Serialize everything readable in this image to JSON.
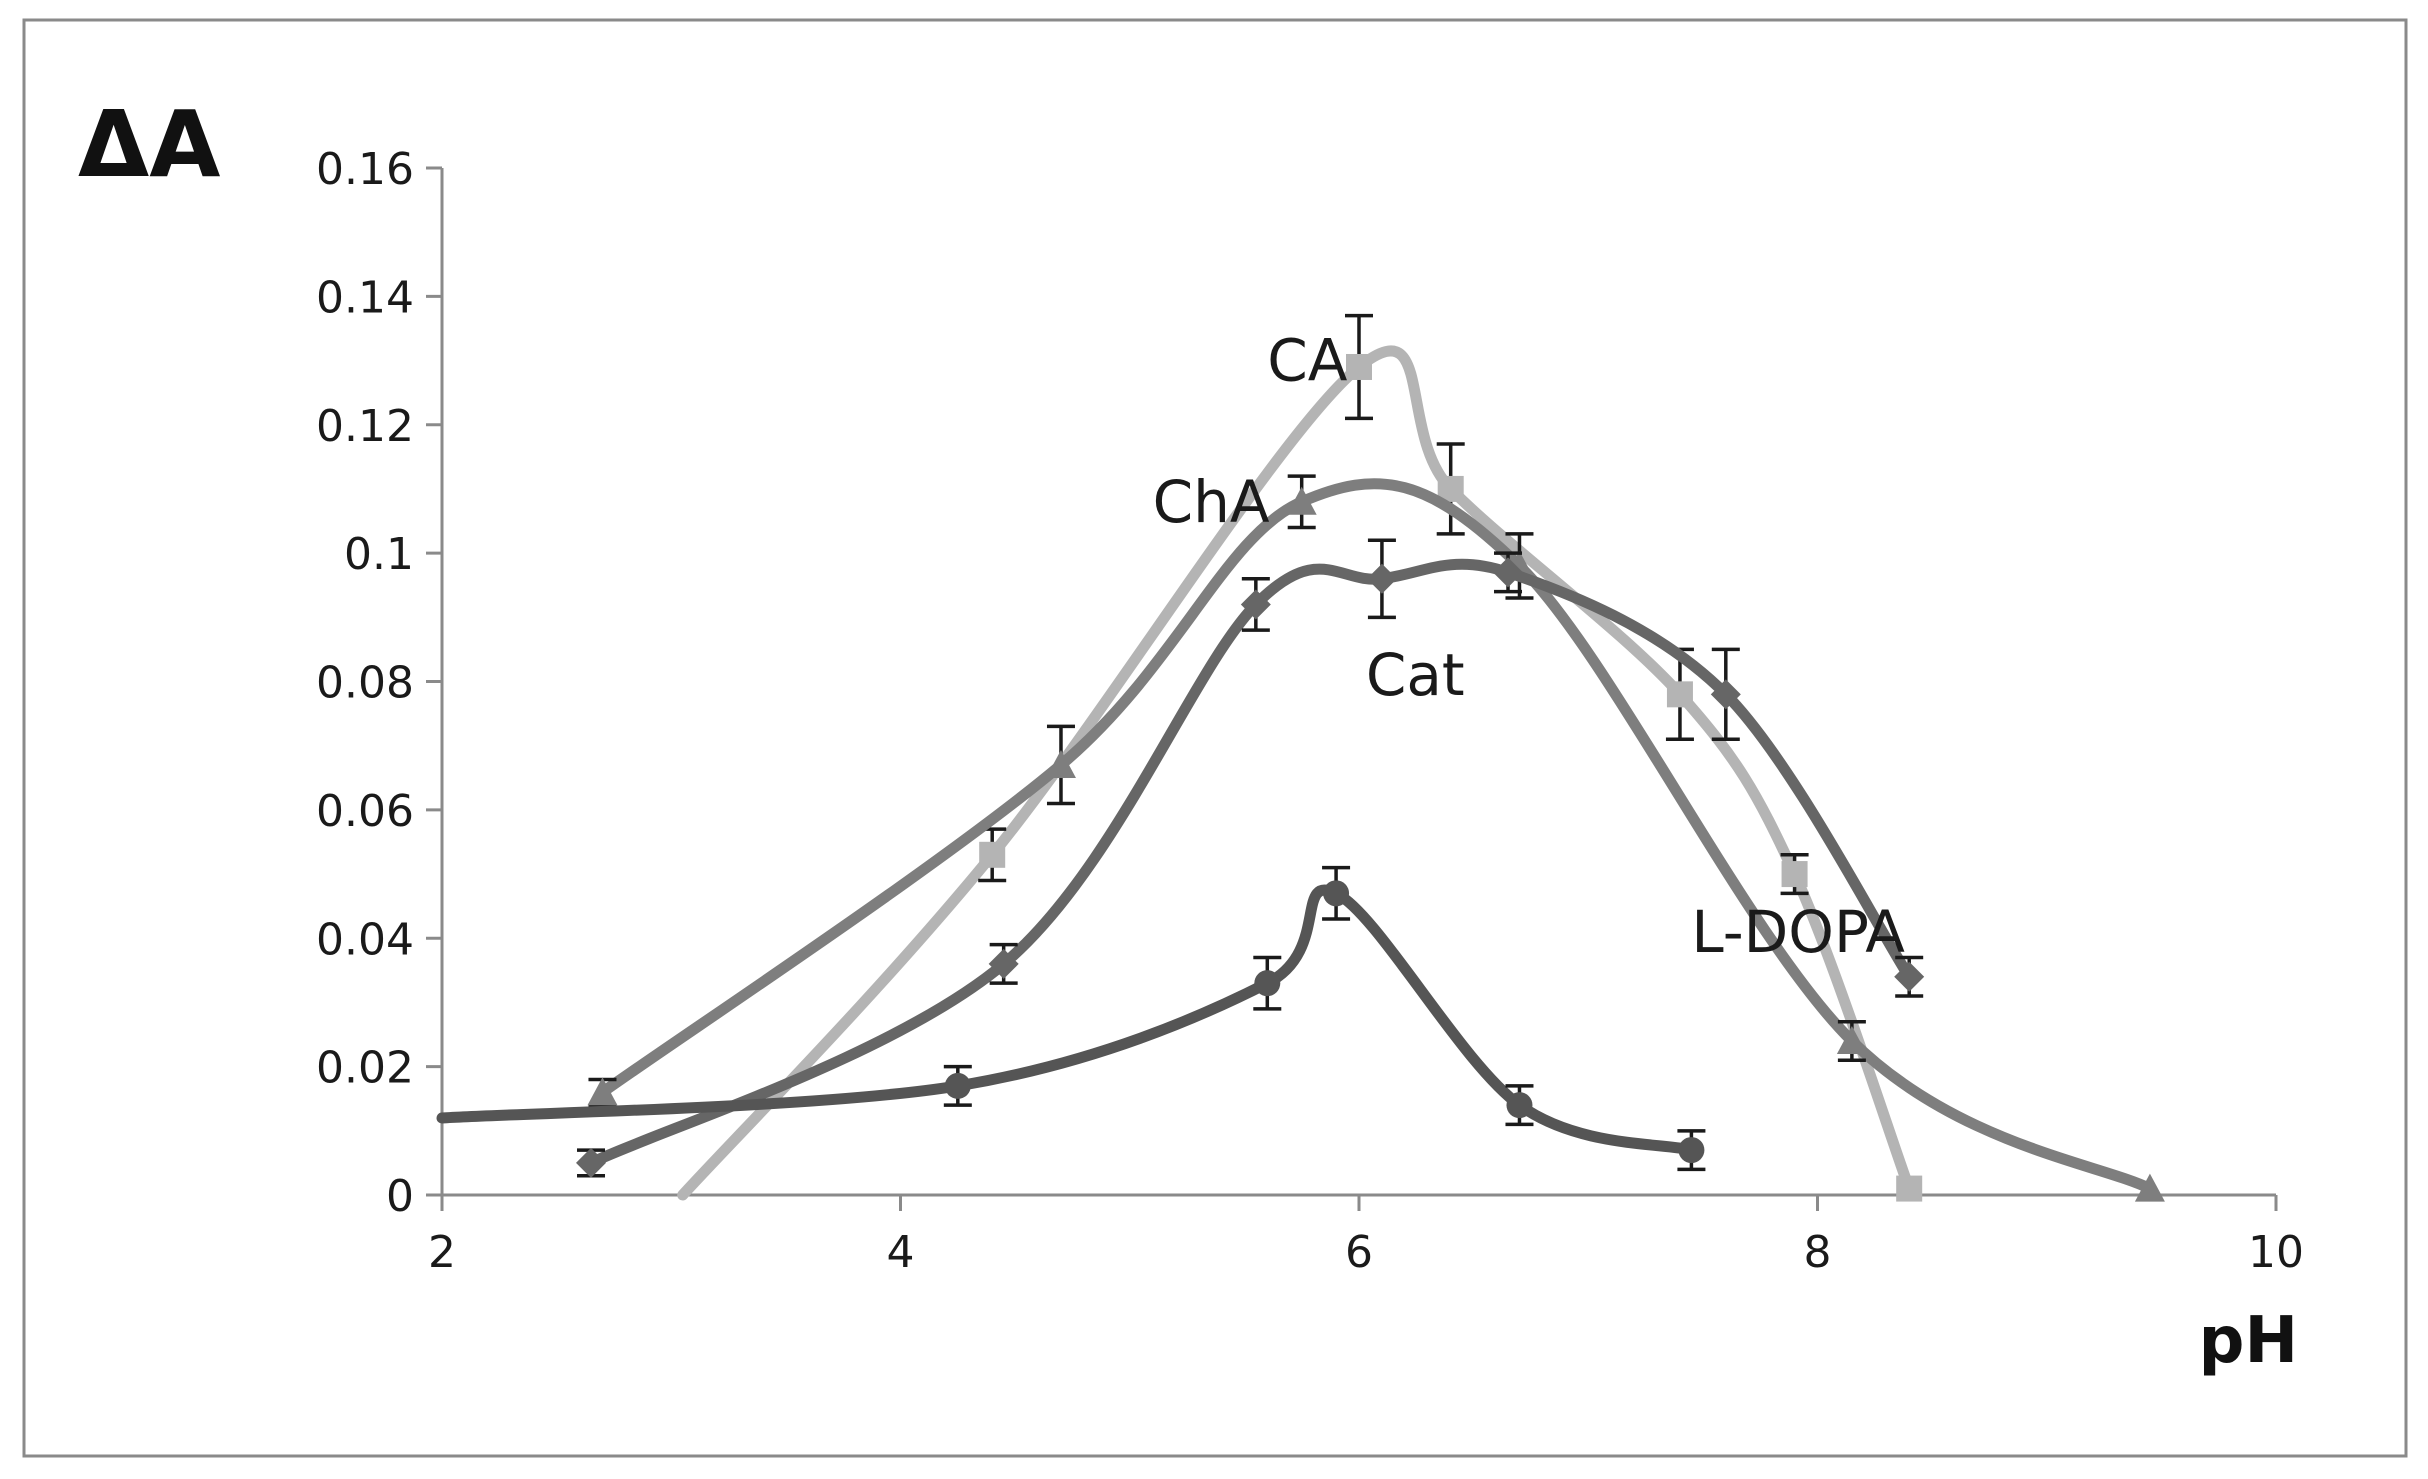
{
  "chart_data": {
    "type": "line",
    "title": "",
    "xlabel": "pH",
    "ylabel": "ΔA",
    "xlim": [
      2,
      10
    ],
    "ylim": [
      0,
      0.16
    ],
    "x_ticks": [
      "2",
      "4",
      "6",
      "8",
      "10"
    ],
    "y_ticks": [
      "0",
      "0.02",
      "0.04",
      "0.06",
      "0.08",
      "0.1",
      "0.12",
      "0.14",
      "0.16"
    ],
    "grid": false,
    "legend": "none",
    "series": [
      {
        "name": "CA",
        "color": "#b4b4b4",
        "marker": "square",
        "curve_start": [
          3.05,
          0
        ],
        "points": [
          {
            "x": 4.4,
            "y": 0.053,
            "err": 0.004
          },
          {
            "x": 6.0,
            "y": 0.129,
            "err": 0.008
          },
          {
            "x": 6.4,
            "y": 0.11,
            "err": 0.007
          },
          {
            "x": 7.4,
            "y": 0.078,
            "err": 0.007
          },
          {
            "x": 7.9,
            "y": 0.05,
            "err": 0.003
          },
          {
            "x": 8.4,
            "y": 0.001,
            "err": 0
          }
        ]
      },
      {
        "name": "ChA",
        "color": "#7e7e7e",
        "marker": "triangle",
        "points": [
          {
            "x": 2.7,
            "y": 0.016,
            "err": 0.002
          },
          {
            "x": 4.7,
            "y": 0.067,
            "err": 0.006
          },
          {
            "x": 5.75,
            "y": 0.108,
            "err": 0.004
          },
          {
            "x": 6.7,
            "y": 0.098,
            "err": 0.005
          },
          {
            "x": 8.15,
            "y": 0.024,
            "err": 0.003
          },
          {
            "x": 9.45,
            "y": 0.001,
            "err": 0
          }
        ]
      },
      {
        "name": "Cat",
        "color": "#666666",
        "marker": "diamond",
        "points": [
          {
            "x": 2.65,
            "y": 0.005,
            "err": 0.002
          },
          {
            "x": 4.45,
            "y": 0.036,
            "err": 0.003
          },
          {
            "x": 5.55,
            "y": 0.092,
            "err": 0.004
          },
          {
            "x": 6.1,
            "y": 0.096,
            "err": 0.006
          },
          {
            "x": 6.65,
            "y": 0.097,
            "err": 0.003
          },
          {
            "x": 7.6,
            "y": 0.078,
            "err": 0.007
          },
          {
            "x": 8.4,
            "y": 0.034,
            "err": 0.003
          }
        ]
      },
      {
        "name": "L-DOPA",
        "color": "#555555",
        "marker": "circle",
        "curve_start": [
          2.0,
          0.012
        ],
        "points": [
          {
            "x": 4.25,
            "y": 0.017,
            "err": 0.003
          },
          {
            "x": 5.6,
            "y": 0.033,
            "err": 0.004
          },
          {
            "x": 5.9,
            "y": 0.047,
            "err": 0.004
          },
          {
            "x": 6.7,
            "y": 0.014,
            "err": 0.003
          },
          {
            "x": 7.45,
            "y": 0.007,
            "err": 0.003
          }
        ]
      }
    ],
    "series_labels": [
      {
        "text": "CA",
        "x": 5.6,
        "y": 0.13
      },
      {
        "text": "ChA",
        "x": 5.1,
        "y": 0.108
      },
      {
        "text": "Cat",
        "x": 6.03,
        "y": 0.081
      },
      {
        "text": "L-DOPA",
        "x": 7.45,
        "y": 0.041
      }
    ]
  }
}
